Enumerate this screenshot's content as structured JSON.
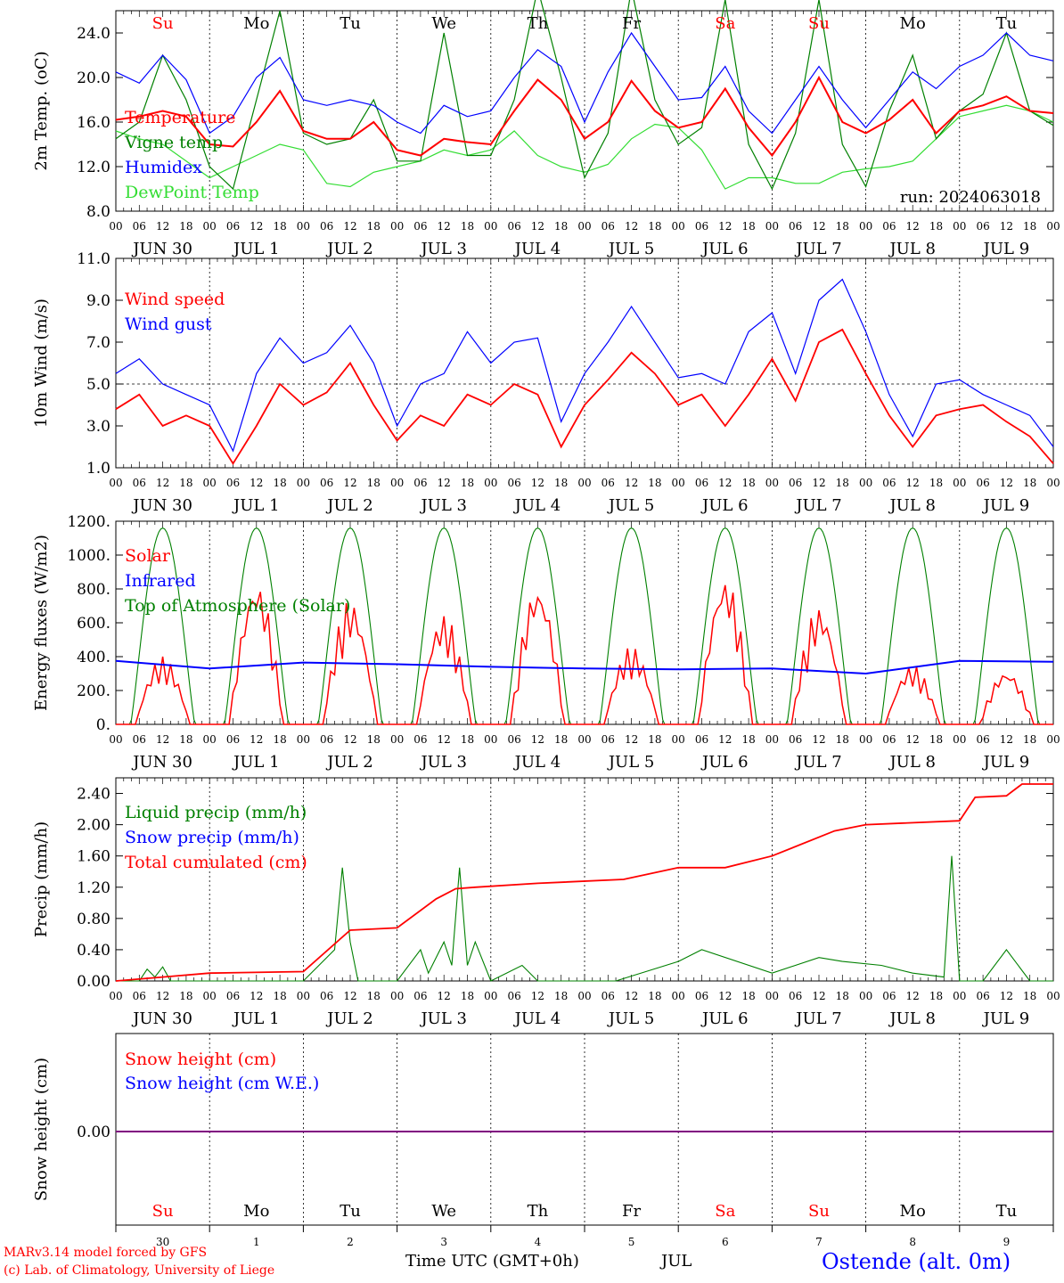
{
  "colors": {
    "red": "#ff0000",
    "green": "#008000",
    "blue": "#0000ff",
    "lightgreen": "#33dd33",
    "purple": "#800080",
    "black": "#000000"
  },
  "time_axis": {
    "hour_labels": [
      "00",
      "06",
      "12",
      "18"
    ],
    "final_label": "00",
    "date_labels": [
      "JUN 30",
      "JUL  1",
      "JUL  2",
      "JUL  3",
      "JUL  4",
      "JUL  5",
      "JUL  6",
      "JUL  7",
      "JUL  8",
      "JUL  9"
    ],
    "days": [
      "Su",
      "Mo",
      "Tu",
      "We",
      "Th",
      "Fr",
      "Sa",
      "Su",
      "Mo",
      "Tu"
    ],
    "day_colors": [
      "#ff0000",
      "#000000",
      "#000000",
      "#000000",
      "#000000",
      "#000000",
      "#ff0000",
      "#ff0000",
      "#000000",
      "#000000"
    ],
    "bottom_day_numbers": [
      "30",
      "1",
      "2",
      "3",
      "4",
      "5",
      "6",
      "7",
      "8",
      "9"
    ]
  },
  "footer": {
    "model": "MARv3.14 model forced by GFS",
    "copyright": "(c) Lab. of Climatology, University of Liege",
    "time_label": "Time UTC (GMT+0h)",
    "month": "JUL",
    "station": "Ostende (alt. 0m)"
  },
  "chart_data": [
    {
      "type": "line",
      "ylabel": "2m Temp. (oC)",
      "ylim": [
        8,
        26
      ],
      "ticks": [
        8,
        12,
        16,
        20,
        24
      ],
      "tick_labels": [
        "8.0",
        "12.0",
        "16.0",
        "20.0",
        "24.0"
      ],
      "annotation": "run: 2024063018",
      "legend": [
        "Temperature",
        "Vigne temp",
        "Humidex",
        "DewPoint Temp"
      ],
      "x_hours": [
        0,
        6,
        12,
        18,
        24,
        30,
        36,
        42,
        48,
        54,
        60,
        66,
        72,
        78,
        84,
        90,
        96,
        102,
        108,
        114,
        120,
        126,
        132,
        138,
        144,
        150,
        156,
        162,
        168,
        174,
        180,
        186,
        192,
        198,
        204,
        210,
        216,
        222,
        228,
        234,
        240
      ],
      "series": [
        {
          "name": "Temperature",
          "color": "#ff0000",
          "values": [
            16.2,
            16.5,
            17.0,
            16.5,
            14,
            13.8,
            16,
            18.8,
            15.2,
            14.5,
            14.5,
            16,
            13.5,
            13,
            14.5,
            14.2,
            14,
            17,
            19.8,
            18,
            14.5,
            16,
            19.7,
            17,
            15.5,
            16,
            19,
            15.5,
            13,
            16,
            20,
            16,
            15,
            16.2,
            18,
            15,
            17,
            17.5,
            18.3,
            17,
            16.8
          ]
        },
        {
          "name": "Vigne temp",
          "color": "#008000",
          "values": [
            14.5,
            16,
            22,
            18,
            12,
            10,
            18,
            26,
            15,
            14,
            14.5,
            18,
            12.5,
            12.5,
            24,
            13,
            13,
            18,
            28,
            20,
            11,
            15,
            28,
            18,
            14,
            15.5,
            27,
            14,
            10,
            15,
            27,
            14,
            10.2,
            17,
            22,
            14.5,
            17,
            18.5,
            24,
            17,
            15.7
          ]
        },
        {
          "name": "Humidex",
          "color": "#0000ff",
          "values": [
            20.5,
            19.5,
            22,
            19.8,
            15,
            16.5,
            20,
            21.8,
            18,
            17.5,
            18,
            17.5,
            16,
            15,
            17.5,
            16.5,
            17,
            20,
            22.5,
            21,
            16,
            20.5,
            24,
            21,
            18,
            18.2,
            21,
            17,
            15,
            18,
            21,
            18,
            15.5,
            18,
            20.5,
            19,
            21,
            22,
            24,
            22,
            21.5
          ]
        },
        {
          "name": "DewPoint Temp",
          "color": "#33dd33",
          "values": [
            15.2,
            14.5,
            14,
            12.5,
            11,
            12,
            13,
            14,
            13.5,
            10.5,
            10.2,
            11.5,
            12,
            12.5,
            13.5,
            13,
            13.5,
            15.2,
            13,
            12,
            11.5,
            12.2,
            14.5,
            15.8,
            15.5,
            13.5,
            10,
            11,
            11,
            10.5,
            10.5,
            11.5,
            11.8,
            12,
            12.5,
            14.5,
            16.5,
            17,
            17.5,
            17,
            16
          ]
        }
      ]
    },
    {
      "type": "line",
      "ylabel": "10m Wind (m/s)",
      "ylim": [
        1,
        11
      ],
      "ticks": [
        1,
        3,
        5,
        7,
        9,
        11
      ],
      "tick_labels": [
        "1.0",
        "3.0",
        "5.0",
        "7.0",
        "9.0",
        "11.0"
      ],
      "reference_line": 5.0,
      "legend": [
        "Wind speed",
        "Wind gust"
      ],
      "x_hours": [
        0,
        6,
        12,
        18,
        24,
        30,
        36,
        42,
        48,
        54,
        60,
        66,
        72,
        78,
        84,
        90,
        96,
        102,
        108,
        114,
        120,
        126,
        132,
        138,
        144,
        150,
        156,
        162,
        168,
        174,
        180,
        186,
        192,
        198,
        204,
        210,
        216,
        222,
        228,
        234,
        240
      ],
      "series": [
        {
          "name": "Wind speed",
          "color": "#ff0000",
          "values": [
            3.8,
            4.5,
            3,
            3.5,
            3,
            1.2,
            3,
            5,
            4,
            4.6,
            6,
            4,
            2.3,
            3.5,
            3,
            4.5,
            4,
            5,
            4.5,
            2,
            4,
            5.2,
            6.5,
            5.5,
            4,
            4.5,
            3,
            4.5,
            6.2,
            4.2,
            7,
            7.6,
            5.5,
            3.5,
            2,
            3.5,
            3.8,
            4,
            3.2,
            2.5,
            1.2
          ]
        },
        {
          "name": "Wind gust",
          "color": "#0000ff",
          "values": [
            5.5,
            6.2,
            5,
            4.5,
            4,
            1.8,
            5.5,
            7.2,
            6,
            6.5,
            7.8,
            6,
            3,
            5,
            5.5,
            7.5,
            6,
            7,
            7.2,
            3.2,
            5.5,
            7,
            8.7,
            7,
            5.3,
            5.5,
            5,
            7.5,
            8.4,
            5.5,
            9,
            10,
            7.5,
            4.5,
            2.5,
            5,
            5.2,
            4.5,
            4,
            3.5,
            2
          ]
        }
      ]
    },
    {
      "type": "line",
      "ylabel": "Energy fluxes (W/m2)",
      "ylim": [
        0,
        1200
      ],
      "ticks": [
        0,
        200,
        400,
        600,
        800,
        1000,
        1200
      ],
      "tick_labels": [
        "0.",
        "200.",
        "400.",
        "600.",
        "800.",
        "1000.",
        "1200."
      ],
      "legend": [
        "Solar",
        "Infrared",
        "Top of Atmosphere (Solar)"
      ],
      "toa_peak": 1160,
      "infrared": {
        "name": "Infrared",
        "color": "#0000ff",
        "x_hours": [
          0,
          24,
          48,
          72,
          96,
          120,
          144,
          168,
          192,
          216,
          240
        ],
        "values": [
          375,
          330,
          365,
          355,
          340,
          330,
          325,
          330,
          300,
          375,
          370
        ]
      },
      "solar_daily_peaks": [
        400,
        850,
        740,
        650,
        830,
        460,
        880,
        700,
        350,
        320
      ]
    },
    {
      "type": "line",
      "ylabel": "Precip (mm/h)",
      "ylim": [
        0,
        2.6
      ],
      "ticks": [
        0,
        0.4,
        0.8,
        1.2,
        1.6,
        2.0,
        2.4
      ],
      "tick_labels": [
        "0.00",
        "0.40",
        "0.80",
        "1.20",
        "1.60",
        "2.00",
        "2.40"
      ],
      "legend": [
        "Liquid precip (mm/h)",
        "Snow precip (mm/h)",
        "Total cumulated (cm)"
      ],
      "series": [
        {
          "name": "Total cumulated (cm)",
          "color": "#ff0000",
          "x_hours": [
            0,
            12,
            24,
            48,
            60,
            64,
            72,
            82,
            87,
            92,
            108,
            130,
            144,
            156,
            168,
            184,
            192,
            216,
            220,
            228,
            232,
            240
          ],
          "values": [
            0,
            0.05,
            0.1,
            0.12,
            0.65,
            0.66,
            0.68,
            1.05,
            1.18,
            1.2,
            1.25,
            1.3,
            1.45,
            1.45,
            1.6,
            1.92,
            2.0,
            2.05,
            2.35,
            2.37,
            2.52,
            2.52
          ]
        },
        {
          "name": "Liquid precip (mm/h)",
          "color": "#008000",
          "x_hours": [
            0,
            6,
            8,
            10,
            12,
            14,
            24,
            48,
            52,
            56,
            58,
            60,
            62,
            66,
            72,
            78,
            80,
            84,
            86,
            88,
            90,
            92,
            96,
            104,
            108,
            114,
            128,
            144,
            150,
            168,
            180,
            186,
            196,
            204,
            212,
            214,
            216,
            218,
            222,
            228,
            234,
            240
          ],
          "values": [
            0,
            0,
            0.15,
            0.05,
            0.18,
            0,
            0,
            0,
            0.2,
            0.4,
            1.45,
            0.5,
            0,
            0,
            0,
            0.4,
            0.1,
            0.5,
            0.2,
            1.45,
            0.2,
            0.5,
            0,
            0.2,
            0,
            0,
            0,
            0.25,
            0.4,
            0.1,
            0.3,
            0.25,
            0.2,
            0.1,
            0.05,
            1.6,
            0,
            0,
            0,
            0.4,
            0,
            0
          ]
        }
      ]
    },
    {
      "type": "line",
      "ylabel": "Snow height (cm)",
      "tick_labels": [
        "0.00"
      ],
      "legend": [
        "Snow height (cm)",
        "Snow height (cm W.E.)"
      ],
      "series": [
        {
          "name": "Snow height (cm)",
          "color": "#ff0000",
          "values": [
            0,
            0
          ]
        },
        {
          "name": "Snow height (cm W.E.)",
          "color": "#0000ff",
          "values": [
            0,
            0
          ]
        }
      ]
    }
  ]
}
